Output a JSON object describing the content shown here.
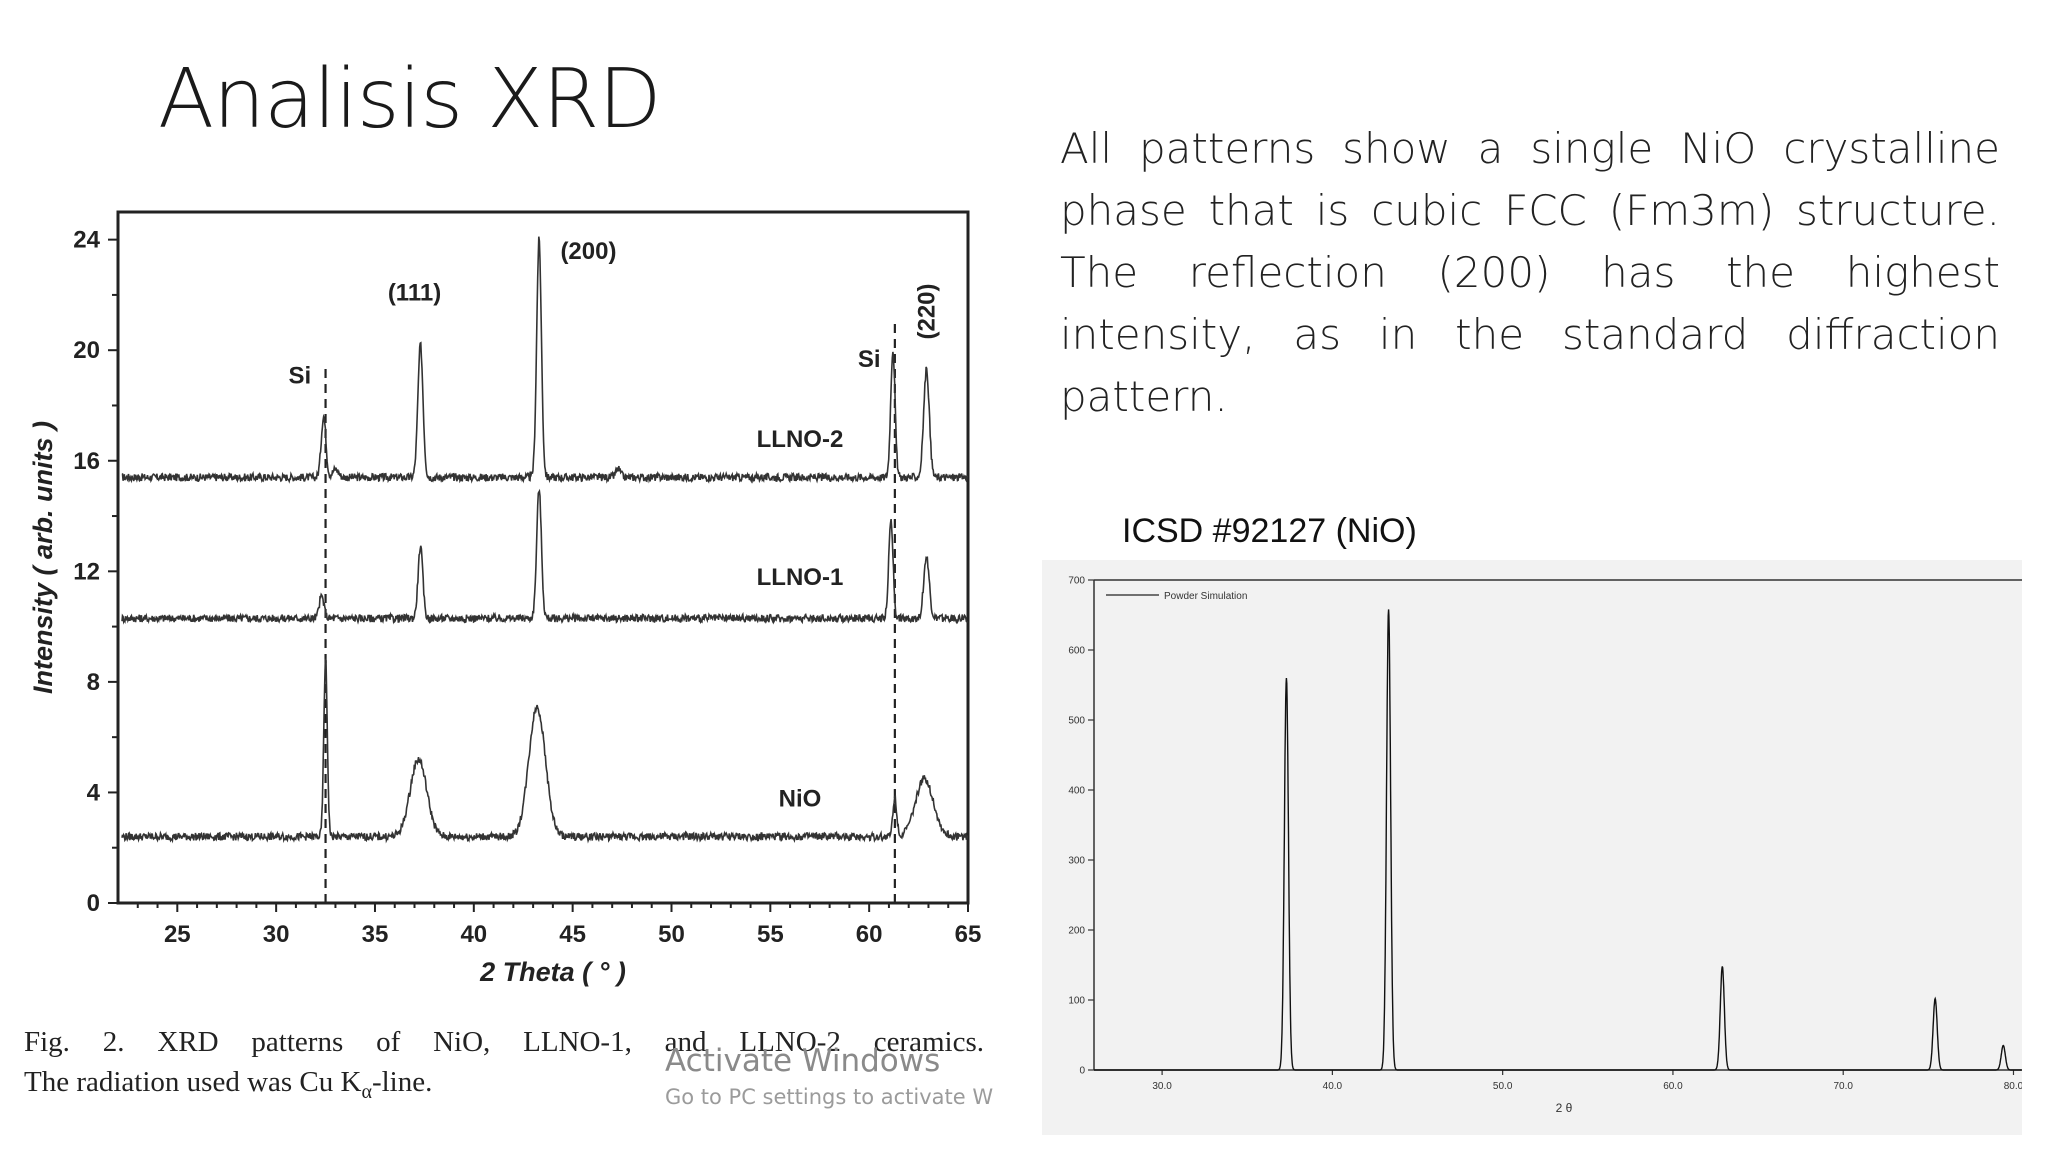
{
  "slide": {
    "title": "Analisis XRD",
    "description": "All patterns show a single NiO crystalline phase that is cubic FCC (Fm3m) structure. The reflection (200) has the highest intensity, as in the standard diffraction pattern.",
    "icsd_label": "ICSD #92127 (NiO)",
    "caption_line1": "Fig.  2. XRD  patterns  of  NiO,  LLNO-1,  and  LLNO-2  ceramics.",
    "caption_line2_pre": "The radiation used was Cu K",
    "caption_sub": "α",
    "caption_line2_post": "-line.",
    "watermark_line1": "Activate Windows",
    "watermark_line2": "Go to PC settings to activate W"
  },
  "chart_data": [
    {
      "type": "line",
      "xlabel": "2 Theta ( ° )",
      "ylabel": "Intensity ( arb. units )",
      "xlim": [
        22,
        65
      ],
      "ylim": [
        0,
        25
      ],
      "x_ticks": [
        25,
        30,
        35,
        40,
        45,
        50,
        55,
        60,
        65
      ],
      "y_ticks": [
        0,
        4,
        8,
        12,
        16,
        20,
        24
      ],
      "series": [
        {
          "name": "LLNO-2",
          "baseline": 15.4,
          "peaks": [
            {
              "x": 32.4,
              "height": 2.2,
              "width": 0.12
            },
            {
              "x": 33.0,
              "height": 0.3,
              "width": 0.15
            },
            {
              "x": 37.3,
              "height": 4.8,
              "width": 0.13
            },
            {
              "x": 43.3,
              "height": 8.6,
              "width": 0.12
            },
            {
              "x": 47.3,
              "height": 0.3,
              "width": 0.12
            },
            {
              "x": 61.2,
              "height": 4.6,
              "width": 0.11
            },
            {
              "x": 62.9,
              "height": 3.9,
              "width": 0.14
            }
          ]
        },
        {
          "name": "LLNO-1",
          "baseline": 10.3,
          "peaks": [
            {
              "x": 32.3,
              "height": 0.8,
              "width": 0.12
            },
            {
              "x": 37.3,
              "height": 2.6,
              "width": 0.12
            },
            {
              "x": 43.3,
              "height": 4.7,
              "width": 0.12
            },
            {
              "x": 61.1,
              "height": 3.5,
              "width": 0.11
            },
            {
              "x": 62.9,
              "height": 2.2,
              "width": 0.14
            }
          ]
        },
        {
          "name": "NiO",
          "baseline": 2.4,
          "peaks": [
            {
              "x": 32.5,
              "height": 6.4,
              "width": 0.09
            },
            {
              "x": 37.2,
              "height": 2.8,
              "width": 0.42
            },
            {
              "x": 43.2,
              "height": 4.7,
              "width": 0.42
            },
            {
              "x": 61.3,
              "height": 1.4,
              "width": 0.1
            },
            {
              "x": 62.8,
              "height": 2.1,
              "width": 0.45
            }
          ]
        }
      ],
      "reference_lines": [
        32.5,
        61.3
      ],
      "annotations": [
        {
          "text": "Si",
          "x": 31.2,
          "y": 18.8
        },
        {
          "text": "(111)",
          "x": 37.0,
          "y": 21.8
        },
        {
          "text": "(200)",
          "x": 45.8,
          "y": 23.3
        },
        {
          "text": "Si",
          "x": 60.0,
          "y": 19.4
        },
        {
          "text": "(220)",
          "x": 63.3,
          "y": 21.4,
          "rotated": true
        },
        {
          "text": "LLNO-2",
          "x": 56.5,
          "y": 16.5
        },
        {
          "text": "LLNO-1",
          "x": 56.5,
          "y": 11.5
        },
        {
          "text": "NiO",
          "x": 56.5,
          "y": 3.5
        }
      ]
    },
    {
      "type": "line",
      "xlabel": "2 θ",
      "ylabel": "",
      "xlim": [
        26,
        80.5
      ],
      "ylim": [
        0,
        700
      ],
      "x_ticks": [
        30.0,
        40.0,
        50.0,
        60.0,
        70.0,
        80.0
      ],
      "y_ticks": [
        0,
        100,
        200,
        300,
        400,
        500,
        600,
        700
      ],
      "series": [
        {
          "name": "Powder Simulation",
          "baseline": 0,
          "peaks": [
            {
              "x": 37.3,
              "height": 560,
              "width": 0.12
            },
            {
              "x": 43.3,
              "height": 658,
              "width": 0.12
            },
            {
              "x": 62.9,
              "height": 148,
              "width": 0.12
            },
            {
              "x": 75.4,
              "height": 102,
              "width": 0.12
            },
            {
              "x": 79.4,
              "height": 35,
              "width": 0.12
            }
          ]
        }
      ]
    }
  ]
}
